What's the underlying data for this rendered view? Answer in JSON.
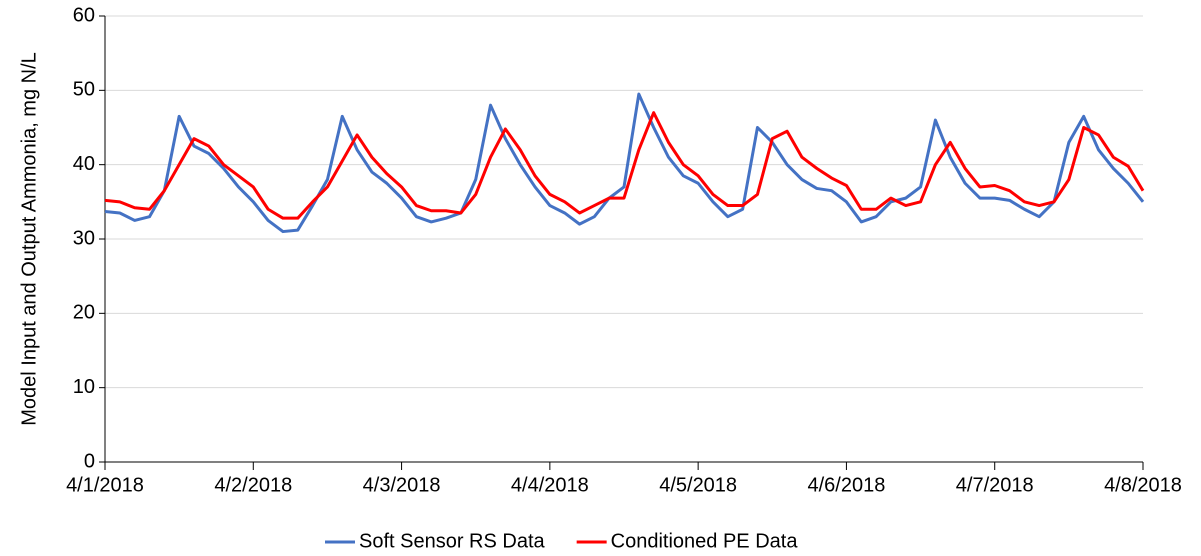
{
  "chart_data": {
    "type": "line",
    "ylabel": "Model Input and Output Ammonia, mg N/L",
    "x": [
      0.0,
      0.1,
      0.2,
      0.3,
      0.4,
      0.5,
      0.6,
      0.7,
      0.8,
      0.9,
      1.0,
      1.1,
      1.2,
      1.3,
      1.4,
      1.5,
      1.6,
      1.7,
      1.8,
      1.9,
      2.0,
      2.1,
      2.2,
      2.3,
      2.4,
      2.5,
      2.6,
      2.7,
      2.8,
      2.9,
      3.0,
      3.1,
      3.2,
      3.3,
      3.4,
      3.5,
      3.6,
      3.7,
      3.8,
      3.9,
      4.0,
      4.1,
      4.2,
      4.3,
      4.4,
      4.5,
      4.6,
      4.7,
      4.8,
      4.9,
      5.0,
      5.1,
      5.2,
      5.3,
      5.4,
      5.5,
      5.6,
      5.7,
      5.8,
      5.9,
      6.0,
      6.1,
      6.2,
      6.3,
      6.4,
      6.5,
      6.6,
      6.7,
      6.8,
      6.9,
      7.0
    ],
    "series": [
      {
        "name": "Soft Sensor RS Data",
        "color": "#4472c4",
        "values": [
          33.7,
          33.5,
          32.5,
          33.0,
          36.5,
          46.5,
          42.5,
          41.5,
          39.5,
          37,
          35,
          32.5,
          31,
          31.2,
          34.5,
          38,
          46.5,
          42,
          39,
          37.5,
          35.5,
          33,
          32.3,
          32.8,
          33.5,
          38,
          48,
          43.5,
          40,
          37,
          34.5,
          33.5,
          32,
          33,
          35.5,
          37,
          49.5,
          45,
          41,
          38.5,
          37.5,
          35,
          33,
          34,
          45,
          43,
          40,
          38,
          36.8,
          36.5,
          35,
          32.3,
          33,
          35,
          35.5,
          37,
          46,
          41,
          37.5,
          35.5,
          35.5,
          35.2,
          34,
          33,
          35,
          43,
          46.5,
          42,
          39.5,
          37.5,
          35
        ]
      },
      {
        "name": "Conditioned PE Data",
        "color": "#ff0000",
        "values": [
          35.2,
          35.0,
          34.2,
          34.0,
          36.5,
          40,
          43.5,
          42.5,
          40,
          38.5,
          37,
          34,
          32.8,
          32.8,
          35,
          37,
          40.5,
          44,
          41,
          38.8,
          37,
          34.5,
          33.8,
          33.8,
          33.5,
          36,
          41,
          44.8,
          42,
          38.5,
          36,
          35,
          33.5,
          34.5,
          35.5,
          35.5,
          42,
          47,
          43,
          40,
          38.5,
          36,
          34.5,
          34.5,
          36,
          43.5,
          44.5,
          41,
          39.5,
          38.2,
          37.2,
          34,
          34,
          35.5,
          34.5,
          35,
          40,
          43,
          39.5,
          37,
          37.2,
          36.5,
          35,
          34.5,
          35,
          38,
          45,
          44,
          41,
          39.8,
          36.5
        ]
      }
    ],
    "xlim": [
      0,
      7
    ],
    "xticks": [
      {
        "value": 0,
        "label": "4/1/2018"
      },
      {
        "value": 1,
        "label": "4/2/2018"
      },
      {
        "value": 2,
        "label": "4/3/2018"
      },
      {
        "value": 3,
        "label": "4/4/2018"
      },
      {
        "value": 4,
        "label": "4/5/2018"
      },
      {
        "value": 5,
        "label": "4/6/2018"
      },
      {
        "value": 6,
        "label": "4/7/2018"
      },
      {
        "value": 7,
        "label": "4/8/2018"
      }
    ],
    "ylim": [
      0,
      60
    ],
    "yticks": [
      0,
      10,
      20,
      30,
      40,
      50,
      60
    ],
    "grid": true,
    "legend": "bottom"
  }
}
